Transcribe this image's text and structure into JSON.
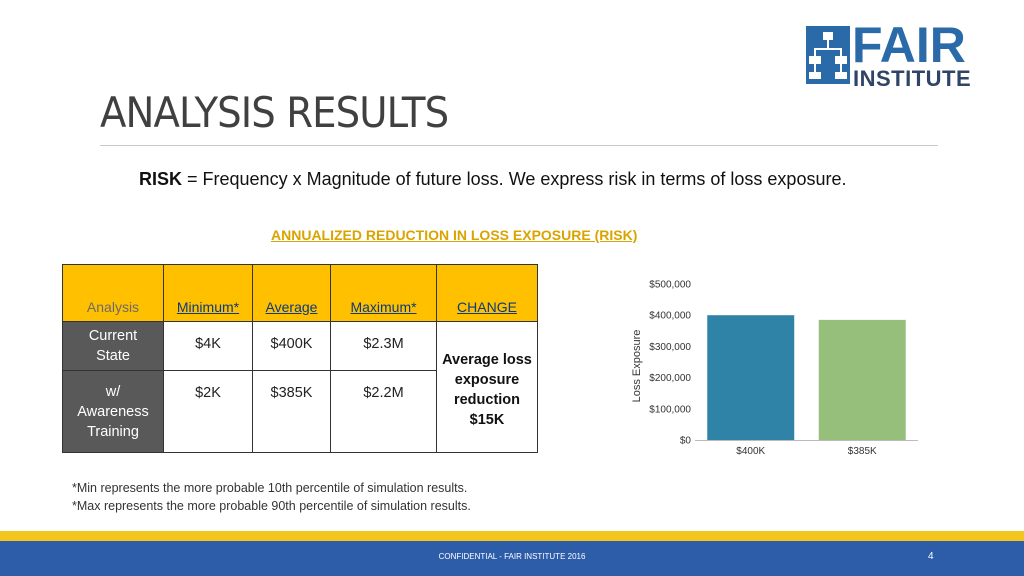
{
  "logo": {
    "word": "FAIR",
    "sub": "INSTITUTE"
  },
  "page_title": "ANALYSIS RESULTS",
  "risk": {
    "term": "RISK",
    "definition": " = Frequency x Magnitude of future loss. We express risk in terms of loss exposure."
  },
  "table": {
    "title": "ANNUALIZED REDUCTION IN LOSS EXPOSURE (RISK)",
    "headers": [
      "Analysis",
      "Minimum*",
      "Average",
      "Maximum*",
      "CHANGE"
    ],
    "rows": [
      {
        "label_line1": "Current",
        "label_line2": "State",
        "min": "$4K",
        "avg": "$400K",
        "max": "$2.3M"
      },
      {
        "label_line1": "w/",
        "label_line2": "Awareness",
        "label_line3": "Training",
        "min": "$2K",
        "avg": "$385K",
        "max": "$2.2M"
      }
    ],
    "change_lines": [
      "Average loss",
      "exposure",
      "reduction",
      "$15K"
    ]
  },
  "chart_data": {
    "type": "bar",
    "categories": [
      "$400K",
      "$385K"
    ],
    "values": [
      400000,
      385000
    ],
    "ylabel": "Loss Exposure",
    "ylim": [
      0,
      500000
    ],
    "yticks": [
      "$0",
      "$100,000",
      "$200,000",
      "$300,000",
      "$400,000",
      "$500,000"
    ],
    "colors": [
      "#2e83a6",
      "#97bf7c"
    ]
  },
  "notes": [
    "*Min represents the more probable 10th percentile of simulation results.",
    "*Max represents the more probable 90th percentile of simulation results."
  ],
  "footer": {
    "text": "CONFIDENTIAL - FAIR INSTITUTE 2016",
    "page_number": "4"
  },
  "colors": {
    "accent_gold": "#ffc000",
    "footer_blue": "#2d5da8",
    "footer_gold": "#f4c51c"
  }
}
